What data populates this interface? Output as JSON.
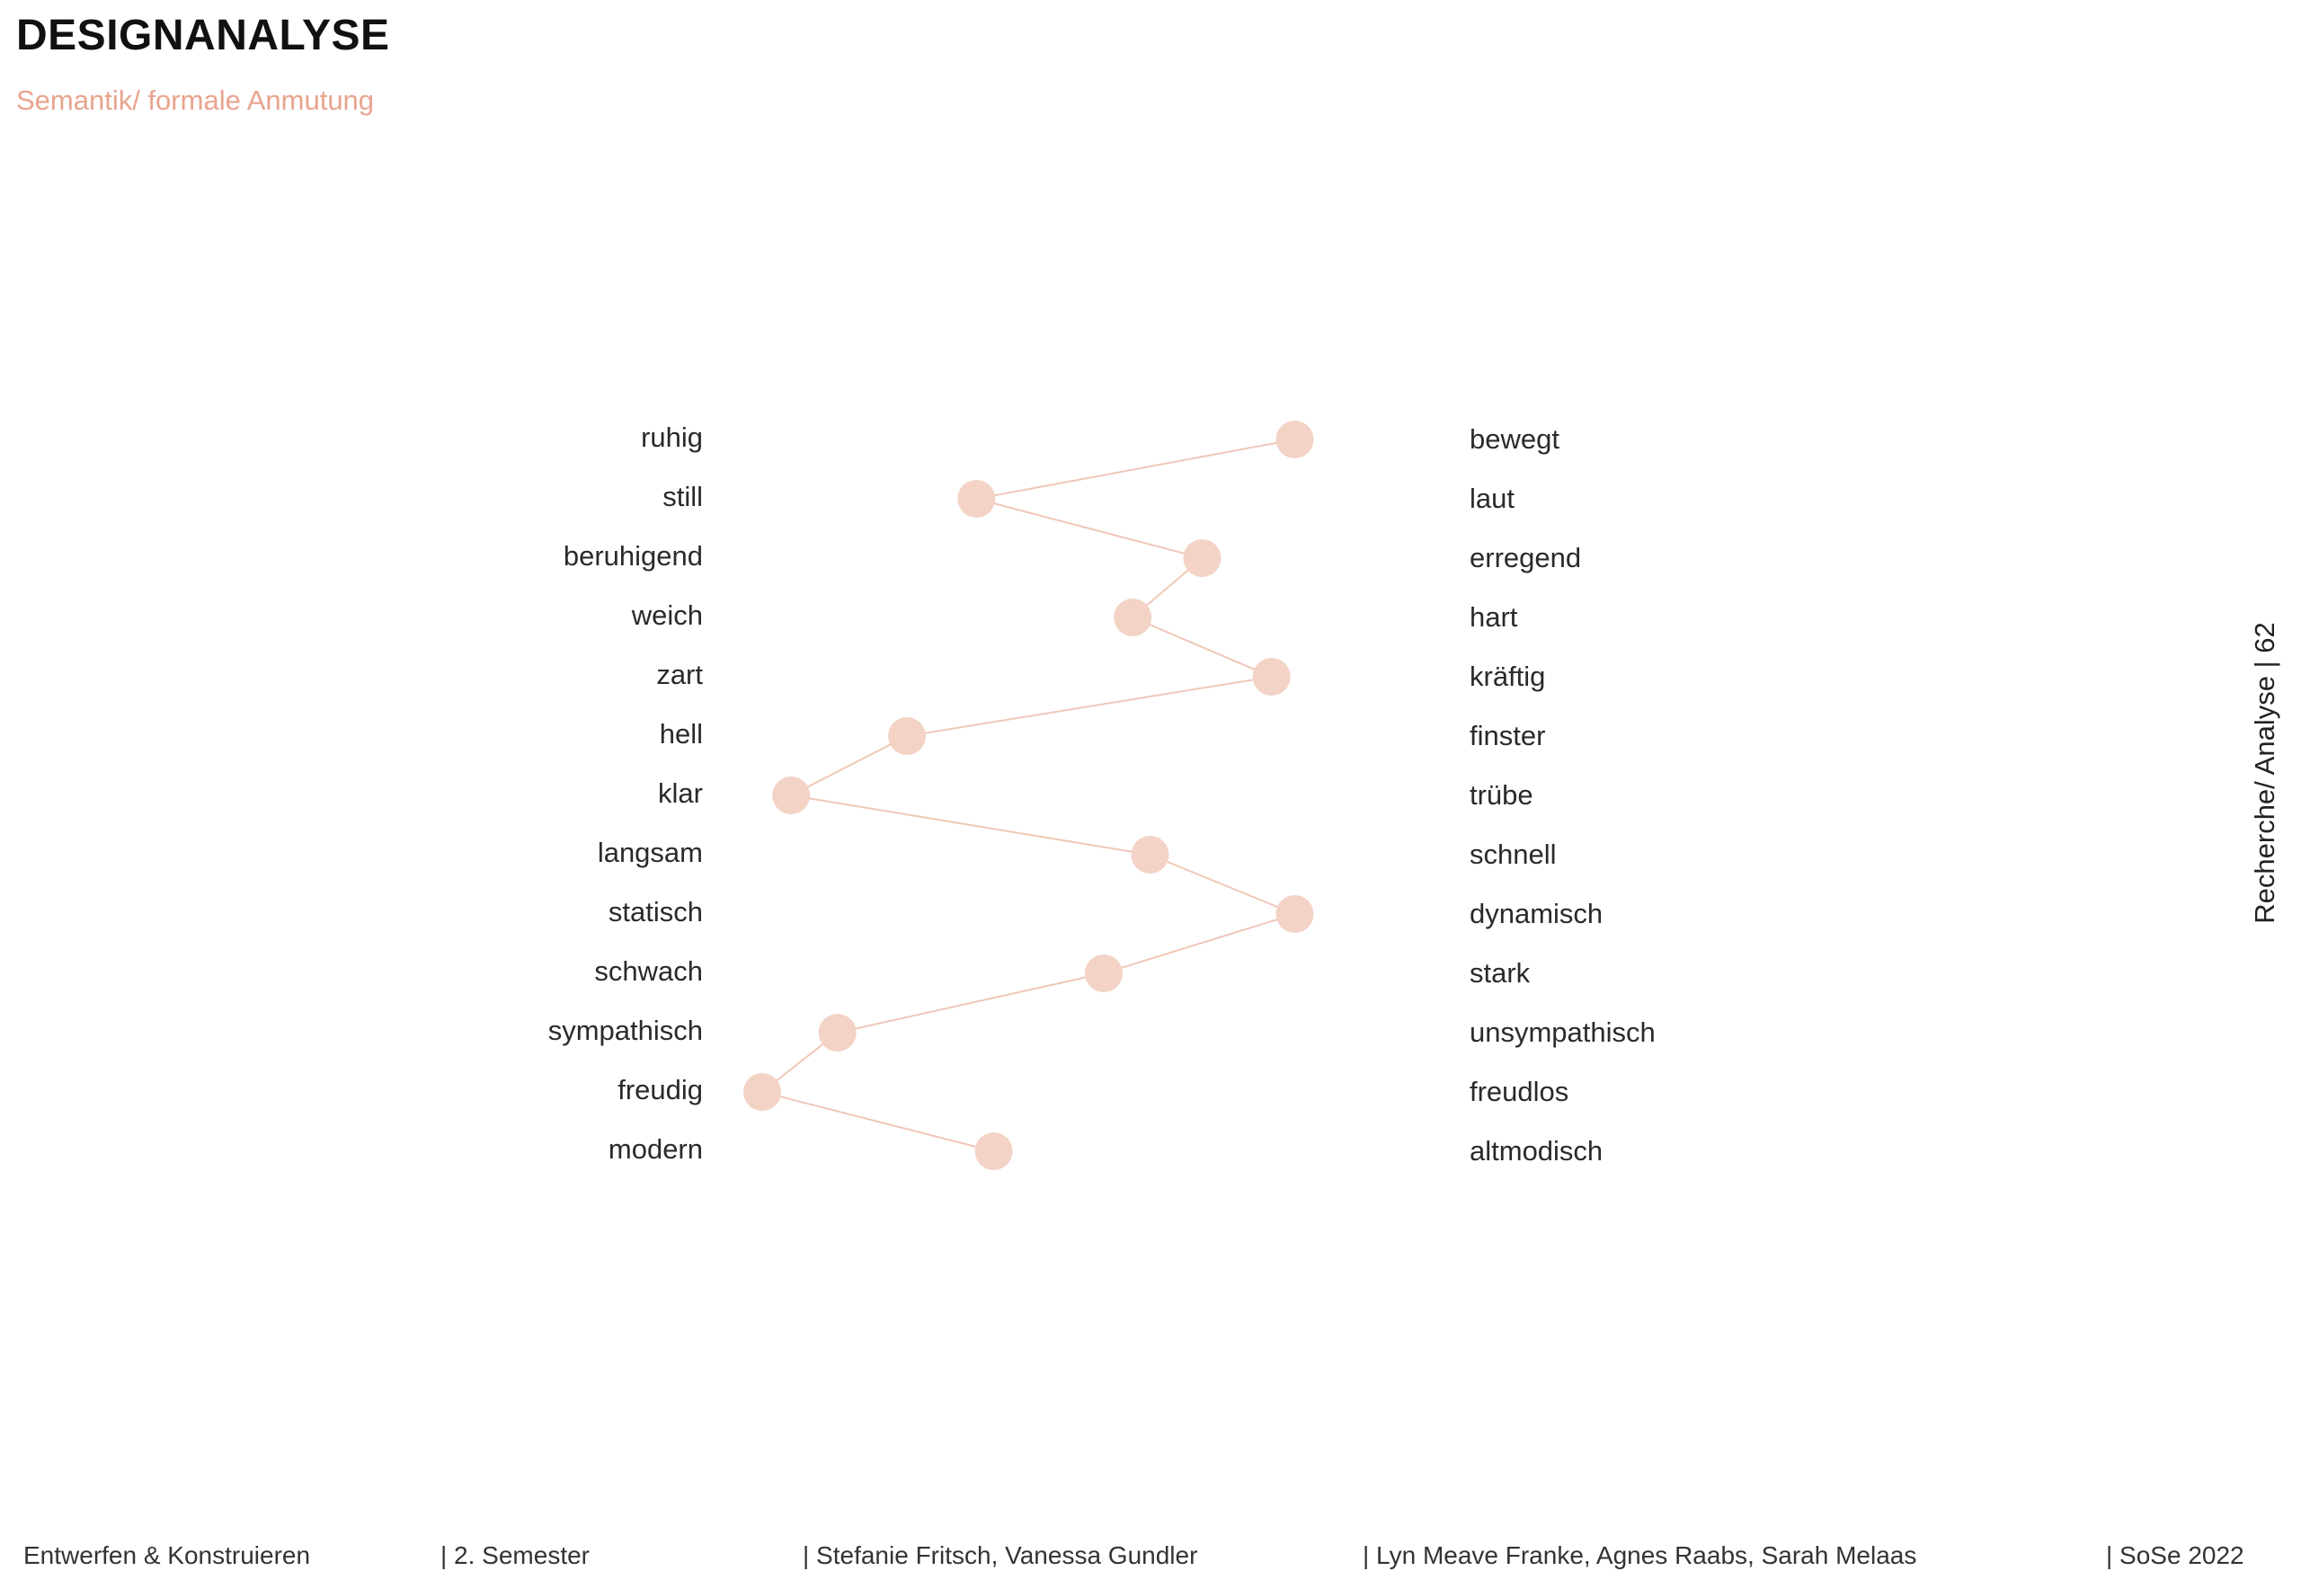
{
  "page": {
    "title": "DESIGNANALYSE",
    "subtitle": "Semantik/ formale Anmutung",
    "side_label": "Recherche/ Analyse | 62"
  },
  "footer": {
    "course": "Entwerfen & Konstruieren",
    "semester": "|  2. Semester",
    "teachers": "| Stefanie Fritsch, Vanessa Gundler",
    "students": "| Lyn Meave Franke, Agnes Raabs, Sarah Melaas",
    "term": "| SoSe 2022"
  },
  "colors": {
    "marker": "#f3d3c6",
    "line": "#f0c7b7",
    "accent": "#e8a48f"
  },
  "chart_data": {
    "type": "line",
    "xlim": [
      0,
      1
    ],
    "categories": [
      {
        "left": "ruhig",
        "right": "bewegt",
        "value": 0.92
      },
      {
        "left": "still",
        "right": "laut",
        "value": 0.37
      },
      {
        "left": "beruhigend",
        "right": "erregend",
        "value": 0.76
      },
      {
        "left": "weich",
        "right": "hart",
        "value": 0.64
      },
      {
        "left": "zart",
        "right": "kräftig",
        "value": 0.88
      },
      {
        "left": "hell",
        "right": "finster",
        "value": 0.25
      },
      {
        "left": "klar",
        "right": "trübe",
        "value": 0.05
      },
      {
        "left": "langsam",
        "right": "schnell",
        "value": 0.67
      },
      {
        "left": "statisch",
        "right": "dynamisch",
        "value": 0.92
      },
      {
        "left": "schwach",
        "right": "stark",
        "value": 0.59
      },
      {
        "left": "sympathisch",
        "right": "unsympathisch",
        "value": 0.13
      },
      {
        "left": "freudig",
        "right": "freudlos",
        "value": 0.0
      },
      {
        "left": "modern",
        "right": "altmodisch",
        "value": 0.4
      }
    ]
  }
}
